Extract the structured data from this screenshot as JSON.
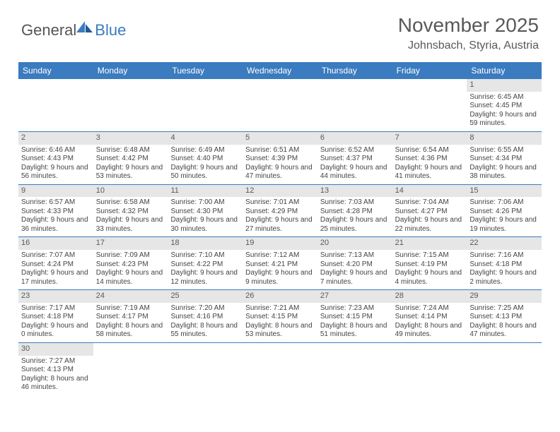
{
  "brand": {
    "general": "General",
    "blue": "Blue"
  },
  "title": "November 2025",
  "location": "Johnsbach, Styria, Austria",
  "colors": {
    "header_bg": "#3b7bbf",
    "daynum_bg": "#e6e6e6",
    "text": "#595959",
    "row_border": "#3b7bbf"
  },
  "weekdays": [
    "Sunday",
    "Monday",
    "Tuesday",
    "Wednesday",
    "Thursday",
    "Friday",
    "Saturday"
  ],
  "weeks": [
    [
      null,
      null,
      null,
      null,
      null,
      null,
      {
        "d": "1",
        "sr": "6:45 AM",
        "ss": "4:45 PM",
        "dl": "9 hours and 59 minutes."
      }
    ],
    [
      {
        "d": "2",
        "sr": "6:46 AM",
        "ss": "4:43 PM",
        "dl": "9 hours and 56 minutes."
      },
      {
        "d": "3",
        "sr": "6:48 AM",
        "ss": "4:42 PM",
        "dl": "9 hours and 53 minutes."
      },
      {
        "d": "4",
        "sr": "6:49 AM",
        "ss": "4:40 PM",
        "dl": "9 hours and 50 minutes."
      },
      {
        "d": "5",
        "sr": "6:51 AM",
        "ss": "4:39 PM",
        "dl": "9 hours and 47 minutes."
      },
      {
        "d": "6",
        "sr": "6:52 AM",
        "ss": "4:37 PM",
        "dl": "9 hours and 44 minutes."
      },
      {
        "d": "7",
        "sr": "6:54 AM",
        "ss": "4:36 PM",
        "dl": "9 hours and 41 minutes."
      },
      {
        "d": "8",
        "sr": "6:55 AM",
        "ss": "4:34 PM",
        "dl": "9 hours and 38 minutes."
      }
    ],
    [
      {
        "d": "9",
        "sr": "6:57 AM",
        "ss": "4:33 PM",
        "dl": "9 hours and 36 minutes."
      },
      {
        "d": "10",
        "sr": "6:58 AM",
        "ss": "4:32 PM",
        "dl": "9 hours and 33 minutes."
      },
      {
        "d": "11",
        "sr": "7:00 AM",
        "ss": "4:30 PM",
        "dl": "9 hours and 30 minutes."
      },
      {
        "d": "12",
        "sr": "7:01 AM",
        "ss": "4:29 PM",
        "dl": "9 hours and 27 minutes."
      },
      {
        "d": "13",
        "sr": "7:03 AM",
        "ss": "4:28 PM",
        "dl": "9 hours and 25 minutes."
      },
      {
        "d": "14",
        "sr": "7:04 AM",
        "ss": "4:27 PM",
        "dl": "9 hours and 22 minutes."
      },
      {
        "d": "15",
        "sr": "7:06 AM",
        "ss": "4:26 PM",
        "dl": "9 hours and 19 minutes."
      }
    ],
    [
      {
        "d": "16",
        "sr": "7:07 AM",
        "ss": "4:24 PM",
        "dl": "9 hours and 17 minutes."
      },
      {
        "d": "17",
        "sr": "7:09 AM",
        "ss": "4:23 PM",
        "dl": "9 hours and 14 minutes."
      },
      {
        "d": "18",
        "sr": "7:10 AM",
        "ss": "4:22 PM",
        "dl": "9 hours and 12 minutes."
      },
      {
        "d": "19",
        "sr": "7:12 AM",
        "ss": "4:21 PM",
        "dl": "9 hours and 9 minutes."
      },
      {
        "d": "20",
        "sr": "7:13 AM",
        "ss": "4:20 PM",
        "dl": "9 hours and 7 minutes."
      },
      {
        "d": "21",
        "sr": "7:15 AM",
        "ss": "4:19 PM",
        "dl": "9 hours and 4 minutes."
      },
      {
        "d": "22",
        "sr": "7:16 AM",
        "ss": "4:18 PM",
        "dl": "9 hours and 2 minutes."
      }
    ],
    [
      {
        "d": "23",
        "sr": "7:17 AM",
        "ss": "4:18 PM",
        "dl": "9 hours and 0 minutes."
      },
      {
        "d": "24",
        "sr": "7:19 AM",
        "ss": "4:17 PM",
        "dl": "8 hours and 58 minutes."
      },
      {
        "d": "25",
        "sr": "7:20 AM",
        "ss": "4:16 PM",
        "dl": "8 hours and 55 minutes."
      },
      {
        "d": "26",
        "sr": "7:21 AM",
        "ss": "4:15 PM",
        "dl": "8 hours and 53 minutes."
      },
      {
        "d": "27",
        "sr": "7:23 AM",
        "ss": "4:15 PM",
        "dl": "8 hours and 51 minutes."
      },
      {
        "d": "28",
        "sr": "7:24 AM",
        "ss": "4:14 PM",
        "dl": "8 hours and 49 minutes."
      },
      {
        "d": "29",
        "sr": "7:25 AM",
        "ss": "4:13 PM",
        "dl": "8 hours and 47 minutes."
      }
    ],
    [
      {
        "d": "30",
        "sr": "7:27 AM",
        "ss": "4:13 PM",
        "dl": "8 hours and 46 minutes."
      },
      null,
      null,
      null,
      null,
      null,
      null
    ]
  ],
  "labels": {
    "sunrise": "Sunrise: ",
    "sunset": "Sunset: ",
    "daylight": "Daylight: "
  }
}
